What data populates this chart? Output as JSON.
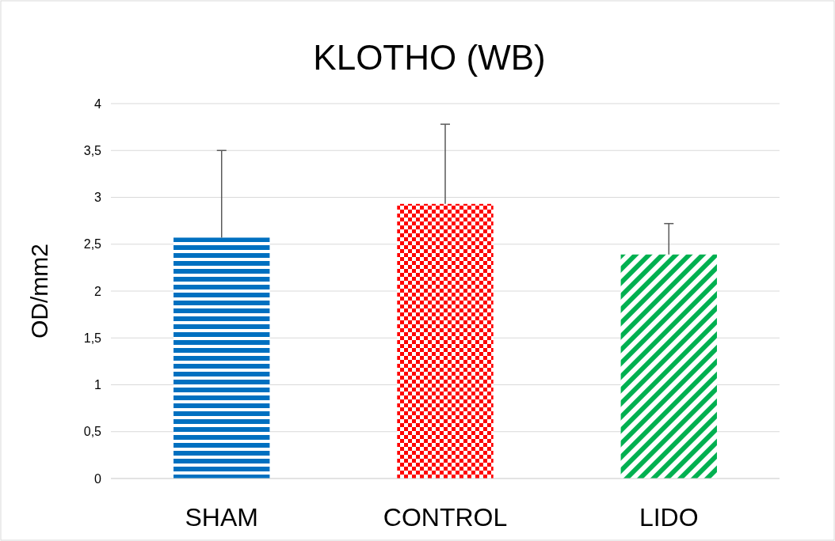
{
  "chart_data": {
    "type": "bar",
    "title": "KLOTHO (WB)",
    "ylabel": "OD/mm2",
    "categories": [
      "SHAM",
      "CONTROL",
      "LIDO"
    ],
    "values": [
      2.57,
      2.93,
      2.39
    ],
    "colors": [
      "#0070c0",
      "#ff0000",
      "#00b050"
    ],
    "errors": [
      [
        2.57,
        3.5
      ],
      [
        2.93,
        3.78
      ],
      [
        2.39,
        2.72
      ]
    ],
    "ylim": [
      0,
      4
    ],
    "yticks": [
      0,
      {
        "value": 0.5,
        "label": "0,5"
      },
      1,
      {
        "value": 1.5,
        "label": "1,5"
      },
      2,
      {
        "value": 2.5,
        "label": "2,5"
      },
      3,
      {
        "value": 3.5,
        "label": "3,5"
      },
      4
    ],
    "grid": "y"
  }
}
